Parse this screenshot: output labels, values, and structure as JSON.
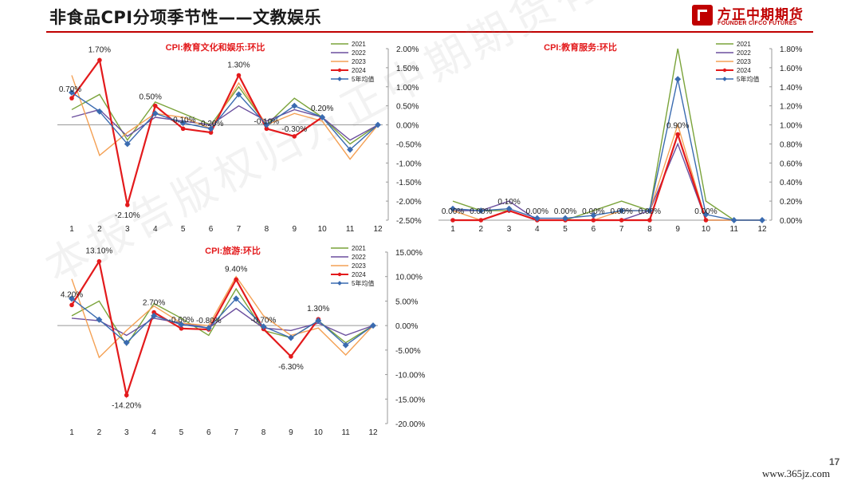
{
  "slide": {
    "title": "非食品CPI分项季节性——文教娱乐",
    "page_number": "17",
    "source_site": "www.365jz.com",
    "watermark": "本报告版权归方正中期期货有限公司所有"
  },
  "logo": {
    "name": "方正中期期货",
    "english": "FOUNDER CIFCO FUTURES",
    "color": "#c00000"
  },
  "chart_data": [
    {
      "type": "line",
      "title": "CPI:教育文化和娱乐:环比",
      "categories": [
        "1",
        "2",
        "3",
        "4",
        "5",
        "6",
        "7",
        "8",
        "9",
        "10",
        "11",
        "12"
      ],
      "ylim": [
        -2.5,
        2.0
      ],
      "yticks": [
        "2.00%",
        "1.50%",
        "1.00%",
        "0.50%",
        "0.00%",
        "-0.50%",
        "-1.00%",
        "-1.50%",
        "-2.00%",
        "-2.50%"
      ],
      "series": [
        {
          "name": "2021",
          "color": "#7aa33a",
          "values": [
            0.4,
            0.8,
            -0.4,
            0.6,
            0.3,
            0.0,
            1.0,
            0.0,
            0.7,
            0.2,
            -0.5,
            0.0
          ]
        },
        {
          "name": "2022",
          "color": "#6b4f9e",
          "values": [
            0.2,
            0.4,
            -0.3,
            0.2,
            0.1,
            0.0,
            0.5,
            0.1,
            0.4,
            0.2,
            -0.4,
            0.0
          ]
        },
        {
          "name": "2023",
          "color": "#f4a155",
          "values": [
            1.3,
            -0.8,
            -0.2,
            0.3,
            0.2,
            -0.1,
            1.1,
            0.0,
            0.3,
            0.1,
            -0.9,
            0.0
          ]
        },
        {
          "name": "2024",
          "color": "#e31a1c",
          "values": [
            0.7,
            1.7,
            -2.1,
            0.5,
            -0.1,
            -0.2,
            1.3,
            -0.1,
            -0.3,
            0.2,
            null,
            null
          ]
        },
        {
          "name": "5年均值",
          "color": "#3a6bb0",
          "values": [
            0.85,
            0.35,
            -0.5,
            0.3,
            0.05,
            -0.1,
            0.8,
            0.0,
            0.5,
            0.2,
            -0.65,
            0.0
          ]
        }
      ],
      "labels": [
        "0.70%",
        "1.70%",
        "-2.10%",
        "0.50%",
        "-0.10%",
        "-0.20%",
        "1.30%",
        "-0.10%",
        "-0.30%",
        "0.20%"
      ]
    },
    {
      "type": "line",
      "title": "CPI:教育服务:环比",
      "categories": [
        "1",
        "2",
        "3",
        "4",
        "5",
        "6",
        "7",
        "8",
        "9",
        "10",
        "11",
        "12"
      ],
      "ylim": [
        0.0,
        1.8
      ],
      "yticks": [
        "1.80%",
        "1.60%",
        "1.40%",
        "1.20%",
        "1.00%",
        "0.80%",
        "0.60%",
        "0.40%",
        "0.20%",
        "0.00%"
      ],
      "series": [
        {
          "name": "2021",
          "color": "#7aa33a",
          "values": [
            0.2,
            0.1,
            0.1,
            0.0,
            0.0,
            0.1,
            0.2,
            0.1,
            1.8,
            0.2,
            0.0,
            0.0
          ]
        },
        {
          "name": "2022",
          "color": "#6b4f9e",
          "values": [
            0.1,
            0.1,
            0.2,
            0.0,
            0.0,
            0.0,
            0.0,
            0.1,
            0.8,
            0.0,
            0.0,
            0.0
          ]
        },
        {
          "name": "2023",
          "color": "#f4a155",
          "values": [
            0.1,
            0.0,
            0.1,
            0.0,
            0.0,
            0.0,
            0.1,
            0.1,
            1.0,
            0.0,
            0.0,
            0.0
          ]
        },
        {
          "name": "2024",
          "color": "#e31a1c",
          "values": [
            0.0,
            0.0,
            0.1,
            0.0,
            0.0,
            0.0,
            0.0,
            0.0,
            0.9,
            0.0,
            null,
            null
          ]
        },
        {
          "name": "5年均值",
          "color": "#3a6bb0",
          "values": [
            0.12,
            0.1,
            0.12,
            0.02,
            0.02,
            0.05,
            0.1,
            0.1,
            1.48,
            0.06,
            0.0,
            0.0
          ]
        }
      ],
      "labels": [
        "0.00%",
        "0.00%",
        "0.10%",
        "0.00%",
        "0.00%",
        "0.00%",
        "0.00%",
        "0.00%",
        "0.90%",
        "0.00%"
      ]
    },
    {
      "type": "line",
      "title": "CPI:旅游:环比",
      "categories": [
        "1",
        "2",
        "3",
        "4",
        "5",
        "6",
        "7",
        "8",
        "9",
        "10",
        "11",
        "12"
      ],
      "ylim": [
        -20.0,
        15.0
      ],
      "yticks": [
        "15.00%",
        "10.00%",
        "5.00%",
        "0.00%",
        "-5.00%",
        "-10.00%",
        "-15.00%",
        "-20.00%"
      ],
      "series": [
        {
          "name": "2021",
          "color": "#7aa33a",
          "values": [
            2.0,
            5.0,
            -4.0,
            4.5,
            1.5,
            -2.0,
            7.5,
            -1.0,
            -2.5,
            1.0,
            -3.5,
            0.0
          ]
        },
        {
          "name": "2022",
          "color": "#6b4f9e",
          "values": [
            1.5,
            1.0,
            -2.0,
            1.5,
            0.5,
            -0.5,
            3.5,
            -0.5,
            -1.0,
            0.5,
            -2.0,
            0.0
          ]
        },
        {
          "name": "2023",
          "color": "#f4a155",
          "values": [
            9.5,
            -6.5,
            -1.0,
            4.0,
            0.5,
            0.0,
            10.0,
            2.0,
            -2.0,
            -0.5,
            -6.0,
            0.0
          ]
        },
        {
          "name": "2024",
          "color": "#e31a1c",
          "values": [
            4.2,
            13.1,
            -14.2,
            2.7,
            -0.6,
            -0.8,
            9.4,
            -0.7,
            -6.3,
            1.3,
            null,
            null
          ]
        },
        {
          "name": "5年均值",
          "color": "#3a6bb0",
          "values": [
            5.5,
            1.2,
            -3.5,
            2.0,
            0.2,
            -0.5,
            5.5,
            -0.2,
            -2.5,
            1.0,
            -4.0,
            0.0
          ]
        }
      ],
      "labels": [
        "4.20%",
        "13.10%",
        "-14.20%",
        "2.70%",
        "-0.60%",
        "-0.80%",
        "9.40%",
        "-0.70%",
        "-6.30%",
        "1.30%"
      ]
    }
  ]
}
